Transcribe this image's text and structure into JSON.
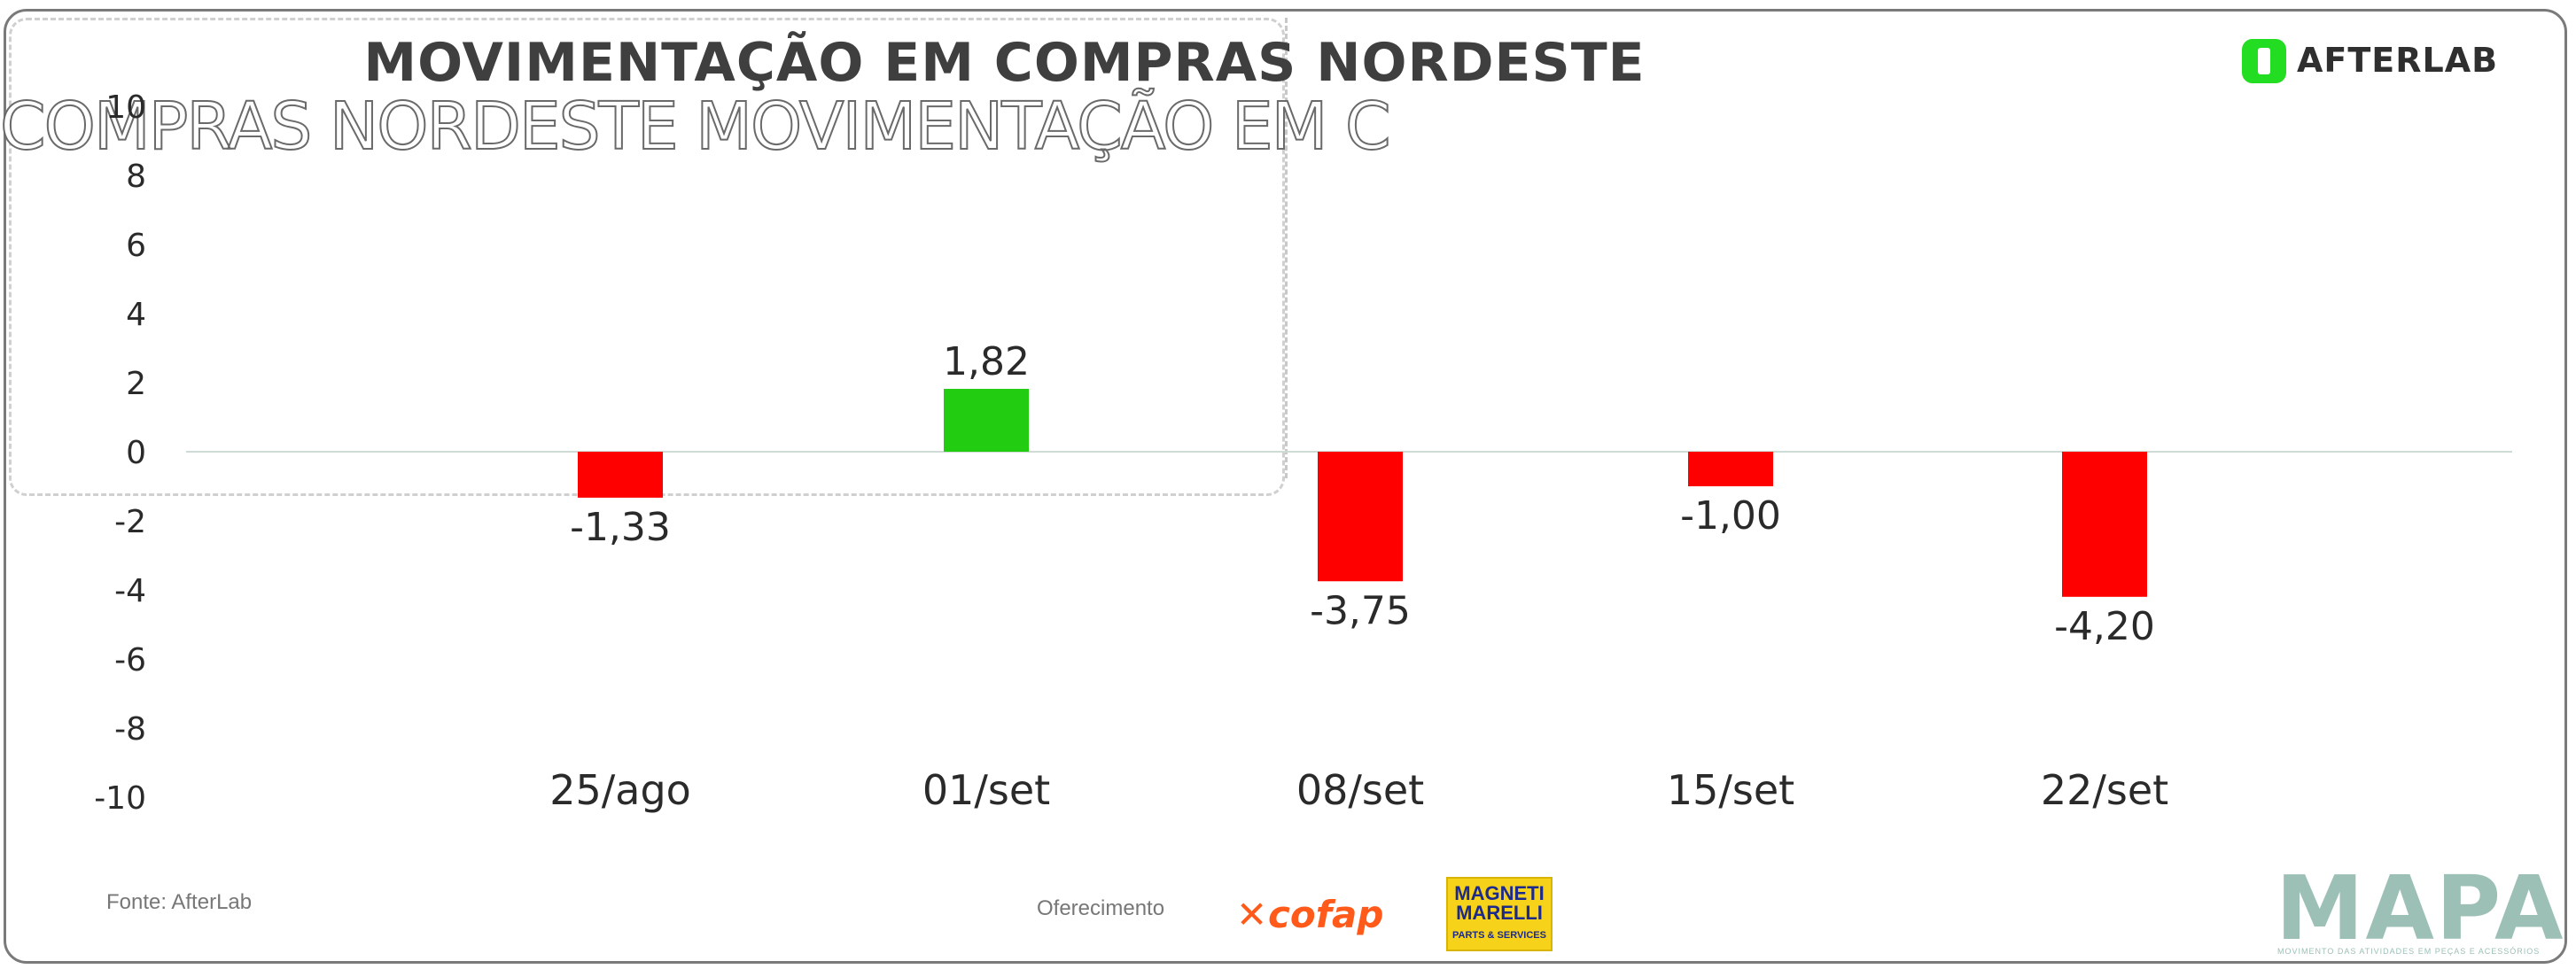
{
  "title": "MOVIMENTAÇÃO EM COMPRAS NORDESTE",
  "ghost_title": "COMPRAS NORDESTE   MOVIMENTAÇÃO EM C",
  "logos": {
    "afterlab": "AFTERLAB",
    "cofap": "cofap",
    "magneti_marelli": "MAGNETI MARELLI",
    "magneti_marelli_sub": "PARTS & SERVICES",
    "mapa": "MAPA",
    "mapa_tagline": "MOVIMENTO DAS ATIVIDADES EM PEÇAS E ACESSÓRIOS"
  },
  "footer": {
    "source": "Fonte: AfterLab",
    "sponsor": "Oferecimento"
  },
  "colors": {
    "positive": "#22cc11",
    "negative": "#ff0000",
    "zero_line": "#cfdcd6"
  },
  "chart_data": {
    "type": "bar",
    "title": "MOVIMENTAÇÃO EM COMPRAS NORDESTE",
    "categories": [
      "25/ago",
      "01/set",
      "08/set",
      "15/set",
      "22/set"
    ],
    "values": [
      -1.33,
      1.82,
      -3.75,
      -1.0,
      -4.2
    ],
    "data_labels": [
      "-1,33",
      "1,82",
      "-3,75",
      "-1,00",
      "-4,20"
    ],
    "ylim": [
      -10,
      10
    ],
    "yticks": [
      10,
      8,
      6,
      4,
      2,
      0,
      -2,
      -4,
      -6,
      -8,
      -10
    ],
    "grid": false,
    "legend": "none"
  }
}
